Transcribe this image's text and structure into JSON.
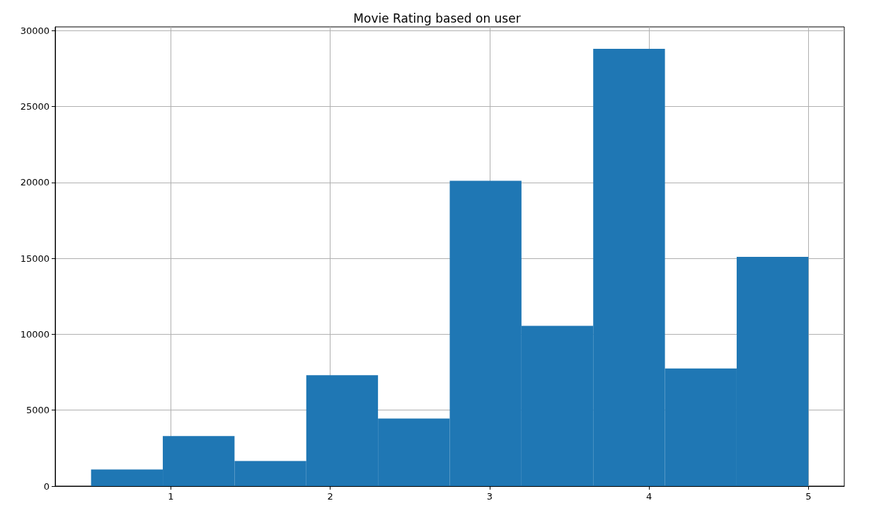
{
  "chart_data": {
    "type": "histogram",
    "title": "Movie Rating based on user",
    "bins": [
      0.5,
      0.95,
      1.4,
      1.85,
      2.3,
      2.75,
      3.2,
      3.65,
      4.1,
      4.55,
      5.0
    ],
    "values": [
      1100,
      3300,
      1650,
      7300,
      4450,
      20100,
      10550,
      28800,
      7750,
      15100
    ],
    "color": "#1f77b4",
    "xlim": [
      0.275,
      5.225
    ],
    "xticks": [
      1,
      2,
      3,
      4,
      5
    ],
    "ylim": [
      0,
      30240
    ],
    "yticks": [
      0,
      5000,
      10000,
      15000,
      20000,
      25000,
      30000
    ],
    "grid": true
  }
}
